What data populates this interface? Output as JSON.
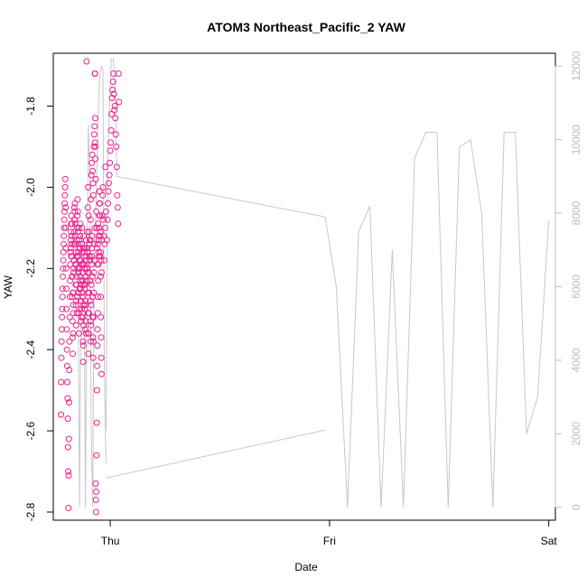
{
  "chart_data": {
    "type": "scatter",
    "title": "ATOM3 Northeast_Pacific_2 YAW",
    "xlabel": "Date",
    "ylabel": "YAW",
    "x_ticks": [
      "Thu",
      "Fri",
      "Sat"
    ],
    "x_range_days": [
      -0.26,
      2.03
    ],
    "ylim": [
      -2.82,
      -1.67
    ],
    "y_ticks": [
      -2.8,
      -2.6,
      -2.4,
      -2.2,
      -2.0,
      -1.8
    ],
    "y2lim": [
      -350,
      12350
    ],
    "y2_ticks": [
      0,
      2000,
      4000,
      6000,
      8000,
      10000,
      12000
    ],
    "grid": false,
    "colors": {
      "points": "#ee1f8c",
      "line": "#c8c8c8",
      "axis": "#000000",
      "right_axis": "#bdbdbd"
    },
    "series": [
      {
        "kind": "points",
        "clusters": [
          {
            "x_start": -0.18,
            "x_end": -0.02,
            "y": [
              -2.15,
              -2.17,
              -2.14,
              -2.09,
              -2.22,
              -2.26,
              -2.29,
              -2.2,
              -2.18,
              -2.05,
              -2.08,
              -2.12,
              -2.19,
              -2.16,
              -2.24,
              -2.31,
              -2.27,
              -2.2,
              -2.17,
              -2.14,
              -2.1,
              -2.13,
              -2.18,
              -2.22,
              -2.25,
              -2.28,
              -2.32,
              -2.3,
              -2.26,
              -2.23,
              -2.19,
              -2.15,
              -2.12,
              -2.16,
              -2.2,
              -2.24,
              -2.29,
              -2.33,
              -2.36,
              -1.69,
              -2.2,
              -2.16,
              -2.05,
              -2.0,
              -2.07,
              -2.11,
              -2.14,
              -2.17,
              -2.13,
              -2.08,
              -2.03,
              -1.97,
              -1.94,
              -1.92,
              -1.96,
              -1.99,
              -2.02,
              -1.9,
              -1.87,
              -1.85,
              -1.89,
              -1.93,
              -1.98,
              -2.06,
              -2.1,
              -2.15,
              -2.19,
              -2.14,
              -2.09,
              -2.12,
              -2.17,
              -2.01,
              -2.04,
              -2.11,
              -2.16,
              -2.18,
              -2.21,
              -2.13,
              -2.07,
              -2.02,
              -2.0,
              -2.08,
              -2.12,
              -2.18,
              -2.14,
              -2.1,
              -1.95,
              -2.06
            ]
          },
          {
            "x_start": -0.015,
            "x_end": 0.04,
            "y": [
              -2.13,
              -2.08,
              -2.04,
              -2.01,
              -1.99,
              -1.97,
              -1.94,
              -1.91,
              -1.89,
              -1.86,
              -1.82,
              -1.78,
              -1.76,
              -1.74,
              -1.72,
              -1.77,
              -1.81,
              -1.8,
              -1.83,
              -1.87,
              -1.9,
              -1.95,
              -2.02,
              -2.05,
              -2.09,
              -1.72,
              -1.79
            ]
          },
          {
            "x_start": -0.225,
            "x_end": -0.04,
            "y": [
              -2.56,
              -2.48,
              -2.42,
              -2.38,
              -2.35,
              -2.32,
              -2.3,
              -2.27,
              -2.25,
              -2.22,
              -2.2,
              -2.18,
              -2.16,
              -2.14,
              -2.12,
              -2.1,
              -2.08,
              -2.06,
              -2.04,
              -2.02,
              -2.0,
              -1.98,
              -2.05,
              -2.1,
              -2.15,
              -2.2,
              -2.25,
              -2.3,
              -2.35,
              -2.4,
              -2.44,
              -2.48,
              -2.52,
              -2.57,
              -2.64,
              -2.7,
              -2.79,
              -2.71,
              -2.62,
              -2.53,
              -2.45,
              -2.38,
              -2.32,
              -2.27,
              -2.23,
              -2.19,
              -2.16,
              -2.13,
              -2.11,
              -2.09,
              -2.07,
              -2.12,
              -2.17,
              -2.22,
              -2.27,
              -2.33,
              -2.37,
              -2.41,
              -2.36,
              -2.31,
              -2.26,
              -2.21,
              -2.18,
              -2.14,
              -2.11,
              -2.08,
              -2.06,
              -2.04,
              -2.09,
              -2.14,
              -2.19,
              -2.24,
              -2.29,
              -2.34,
              -2.28,
              -2.22,
              -2.17,
              -2.13,
              -2.1,
              -2.07,
              -2.03,
              -2.06,
              -2.11,
              -2.16,
              -2.21,
              -2.26,
              -2.31,
              -2.36,
              -2.3,
              -2.25,
              -2.2,
              -2.15,
              -2.12,
              -2.09,
              -2.18,
              -2.23,
              -2.28,
              -2.33,
              -2.24,
              -2.19,
              -2.14,
              -2.1,
              -2.16,
              -2.21,
              -2.27,
              -2.32,
              -2.38,
              -2.43,
              -2.39,
              -2.34,
              -2.29,
              -2.24,
              -2.19,
              -2.15,
              -2.2,
              -2.25,
              -2.3,
              -2.35,
              -2.28,
              -2.22,
              -2.17,
              -2.13,
              -2.18,
              -2.23,
              -2.2,
              -2.15,
              -2.11,
              -2.16,
              -2.21,
              -2.26,
              -2.31,
              -2.36,
              -2.41,
              -2.36,
              -2.31,
              -2.26,
              -2.21,
              -2.17,
              -2.13,
              -2.18,
              -2.23,
              -2.28,
              -2.33,
              -2.38,
              -2.34,
              -2.29,
              -2.24,
              -2.19,
              -2.15,
              -2.12,
              -2.17,
              -2.22,
              -2.27,
              -2.32,
              -2.37,
              -2.42,
              -2.38,
              -2.32,
              -2.26,
              -2.21,
              -2.18,
              -2.14,
              -2.1,
              -1.72,
              -1.72,
              -1.83,
              -1.9,
              -2.73,
              -2.77,
              -2.8,
              -2.75,
              -2.66,
              -2.58,
              -2.5,
              -2.44,
              -2.39,
              -2.35,
              -2.31,
              -2.27,
              -2.23,
              -2.19,
              -2.16,
              -2.13,
              -2.1,
              -2.07,
              -2.04,
              -2.01,
              -2.07,
              -2.12,
              -2.17,
              -2.22,
              -2.27,
              -2.32,
              -2.37,
              -2.42,
              -2.46
            ]
          }
        ]
      },
      {
        "kind": "line",
        "axis": "right",
        "segments": [
          {
            "x_start": -0.16,
            "x_end": -0.02,
            "y": [
              7500,
              7000,
              6000,
              0,
              6500,
              7200,
              6800,
              0,
              5500,
              10400,
              9000,
              2000,
              0,
              7000,
              8000,
              9500,
              11000,
              11800,
              12000,
              11900,
              3500,
              1200
            ]
          },
          {
            "x": [
              -0.02,
              0.98
            ],
            "y": [
              800,
              2100
            ]
          },
          {
            "x_start": -0.02,
            "x_end": 0.03,
            "y": [
              2100,
              9500,
              11000,
              12200,
              12200,
              11500,
              9000
            ]
          },
          {
            "x": [
              0.03,
              0.98
            ],
            "y": [
              9000,
              7900
            ]
          },
          {
            "x_start": 0.98,
            "x_end": 2.0,
            "y": [
              7900,
              6000,
              0,
              7500,
              8200,
              0,
              7000,
              0,
              9500,
              10200,
              10200,
              0,
              9800,
              10000,
              8000,
              0,
              10200,
              10200,
              2000,
              3000,
              7800
            ]
          }
        ]
      }
    ]
  }
}
